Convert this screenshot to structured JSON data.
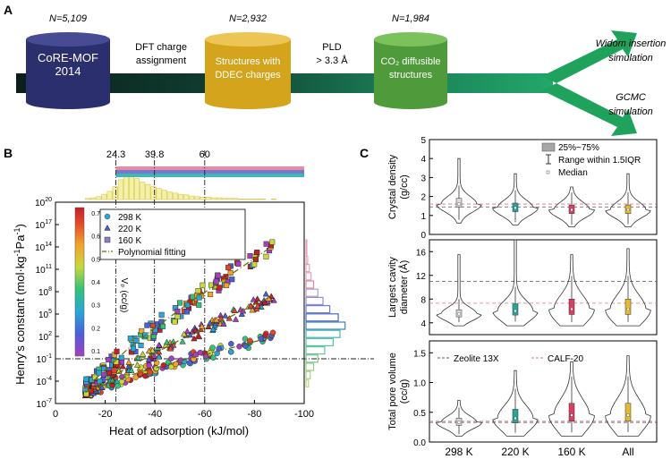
{
  "panelA": {
    "label": "A",
    "stages": [
      {
        "n": "N=5,109",
        "lines": [
          "CoRE-MOF",
          "2014"
        ],
        "color": "#2c2f6e",
        "top": "#474b94"
      },
      {
        "n": "N=2,932",
        "lines": [
          "Structures with",
          "DDEC charges"
        ],
        "color": "#d4a41c",
        "top": "#ecc554"
      },
      {
        "n": "N=1,984",
        "lines": [
          "CO₂ diffusible",
          "structures"
        ],
        "color": "#4f9a3a",
        "top": "#7cc25c"
      }
    ],
    "steps": [
      [
        "DFT charge",
        "assignment"
      ],
      [
        "PLD",
        "> 3.3 Å"
      ]
    ],
    "outputs": [
      [
        "Widom insertion",
        "simulation"
      ],
      [
        "GCMC",
        "simulation"
      ]
    ]
  },
  "panelB": {
    "label": "B",
    "xlabel": "Heat of adsorption (kJ/mol)",
    "ylabel": "Henry's constant (mol·kg⁻¹Pa⁻¹)",
    "ylabel_parts": [
      "Henry's constant (mol·kg",
      "-1",
      "Pa",
      "-1",
      ")"
    ],
    "xticks": [
      "0",
      "-20",
      "-40",
      "-60",
      "-80",
      "-100"
    ],
    "yticks": [
      {
        "base": "10",
        "exp": "20"
      },
      {
        "base": "10",
        "exp": "17"
      },
      {
        "base": "10",
        "exp": "14"
      },
      {
        "base": "10",
        "exp": "11"
      },
      {
        "base": "10",
        "exp": "8"
      },
      {
        "base": "10",
        "exp": "5"
      },
      {
        "base": "10",
        "exp": "2"
      },
      {
        "base": "10",
        "exp": "-1"
      },
      {
        "base": "10",
        "exp": "-4"
      },
      {
        "base": "10",
        "exp": "-7"
      }
    ],
    "top_marks": [
      "24.3",
      "39.8",
      "60"
    ],
    "colorbar_ticks": [
      "0.7",
      "0.6",
      "0.5",
      "0.4",
      "0.3",
      "0.2",
      "0.1"
    ],
    "colorbar_label": "Vₚ (cc/g)",
    "legend": [
      {
        "marker": "circle",
        "label": "298 K"
      },
      {
        "marker": "triangle",
        "label": "220 K"
      },
      {
        "marker": "square",
        "label": "160 K"
      },
      {
        "marker": "line",
        "label": "Polynomial fitting"
      }
    ]
  },
  "panelC": {
    "label": "C",
    "categories": [
      "298 K",
      "220 K",
      "160 K",
      "All"
    ],
    "sub": [
      {
        "ylabel": [
          "Crystal density",
          "(g/cc)"
        ],
        "yticks": [
          "5",
          "4",
          "3",
          "2",
          "1",
          "0"
        ],
        "legend": [
          "25%~75%",
          "Range within 1.5IQR",
          "Median"
        ]
      },
      {
        "ylabel": [
          "Largest cavity",
          "diameter (Å)"
        ],
        "yticks": [
          "16",
          "12",
          "8",
          "4"
        ]
      },
      {
        "ylabel": [
          "Total pore volume",
          "(cc/g)"
        ],
        "yticks": [
          "1.5",
          "1.0",
          "0.5",
          "0.0"
        ],
        "legend": [
          "Zeolite 13X",
          "CALF-20"
        ]
      }
    ]
  },
  "chart_data": [
    {
      "type": "scatter",
      "title": "",
      "xlabel": "Heat of adsorption (kJ/mol)",
      "ylabel": "Henry's constant (mol·kg-1Pa-1)",
      "xlim": [
        0,
        -100
      ],
      "ylim_log10": [
        -7,
        20
      ],
      "yscale": "log",
      "reference_lines_x": [
        -24.3,
        -39.8,
        -60
      ],
      "reference_line_y_log10": -1,
      "colorbar": {
        "label": "Vp (cc/g)",
        "range": [
          0.05,
          0.75
        ]
      },
      "series": [
        {
          "name": "298 K",
          "marker": "circle",
          "x_range": [
            -12,
            -90
          ],
          "log10_y_range": [
            -5.5,
            2.7
          ]
        },
        {
          "name": "220 K",
          "marker": "triangle",
          "x_range": [
            -12,
            -90
          ],
          "log10_y_range": [
            -5.5,
            8.5
          ]
        },
        {
          "name": "160 K",
          "marker": "square",
          "x_range": [
            -12,
            -90
          ],
          "log10_y_range": [
            -5.5,
            16
          ]
        }
      ],
      "fits": [
        {
          "name": "298 K",
          "points": [
            [
              -12,
              -5.5
            ],
            [
              -30,
              -3.2
            ],
            [
              -50,
              -1.3
            ],
            [
              -70,
              0.4
            ],
            [
              -88,
              2.0
            ]
          ]
        },
        {
          "name": "220 K",
          "points": [
            [
              -12,
              -5.5
            ],
            [
              -30,
              -2.0
            ],
            [
              -50,
              1.5
            ],
            [
              -70,
              4.6
            ],
            [
              -88,
              7.6
            ]
          ]
        },
        {
          "name": "160 K",
          "points": [
            [
              -12,
              -5.0
            ],
            [
              -30,
              0.6
            ],
            [
              -50,
              5.6
            ],
            [
              -70,
              10.2
            ],
            [
              -85,
              13.6
            ]
          ]
        }
      ]
    },
    {
      "type": "violin",
      "categories": [
        "298 K",
        "220 K",
        "160 K",
        "All"
      ],
      "panels": [
        {
          "ylabel": "Crystal density (g/cc)",
          "ylim": [
            0,
            5
          ],
          "median": [
            1.6,
            1.4,
            1.3,
            1.3
          ],
          "q1": [
            1.45,
            1.2,
            1.1,
            1.1
          ],
          "q3": [
            1.9,
            1.65,
            1.55,
            1.55
          ],
          "whisker": [
            [
              0.6,
              4.0
            ],
            [
              0.5,
              3.2
            ],
            [
              0.4,
              2.5
            ],
            [
              0.4,
              3.2
            ]
          ],
          "zeolite_13X": 1.45,
          "CALF_20": 1.6
        },
        {
          "ylabel": "Largest cavity diameter (Å)",
          "ylim": [
            2,
            18
          ],
          "median": [
            5.5,
            6.0,
            6.3,
            6.3
          ],
          "q1": [
            5.0,
            5.3,
            5.4,
            5.4
          ],
          "q3": [
            6.2,
            7.2,
            8.0,
            8.0
          ],
          "whisker": [
            [
              3.5,
              15.5
            ],
            [
              3.5,
              18
            ],
            [
              3.5,
              15.5
            ],
            [
              3.5,
              16.5
            ]
          ],
          "zeolite_13X": 11.0,
          "CALF_20": 7.3
        },
        {
          "ylabel": "Total pore volume (cc/g)",
          "ylim": [
            0,
            1.7
          ],
          "median": [
            0.33,
            0.4,
            0.45,
            0.45
          ],
          "q1": [
            0.28,
            0.32,
            0.35,
            0.35
          ],
          "q3": [
            0.4,
            0.55,
            0.65,
            0.65
          ],
          "whisker": [
            [
              0.1,
              0.7
            ],
            [
              0.1,
              1.2
            ],
            [
              0.1,
              1.35
            ],
            [
              0.1,
              1.45
            ]
          ],
          "zeolite_13X": 0.33,
          "CALF_20": 0.35
        }
      ]
    }
  ]
}
